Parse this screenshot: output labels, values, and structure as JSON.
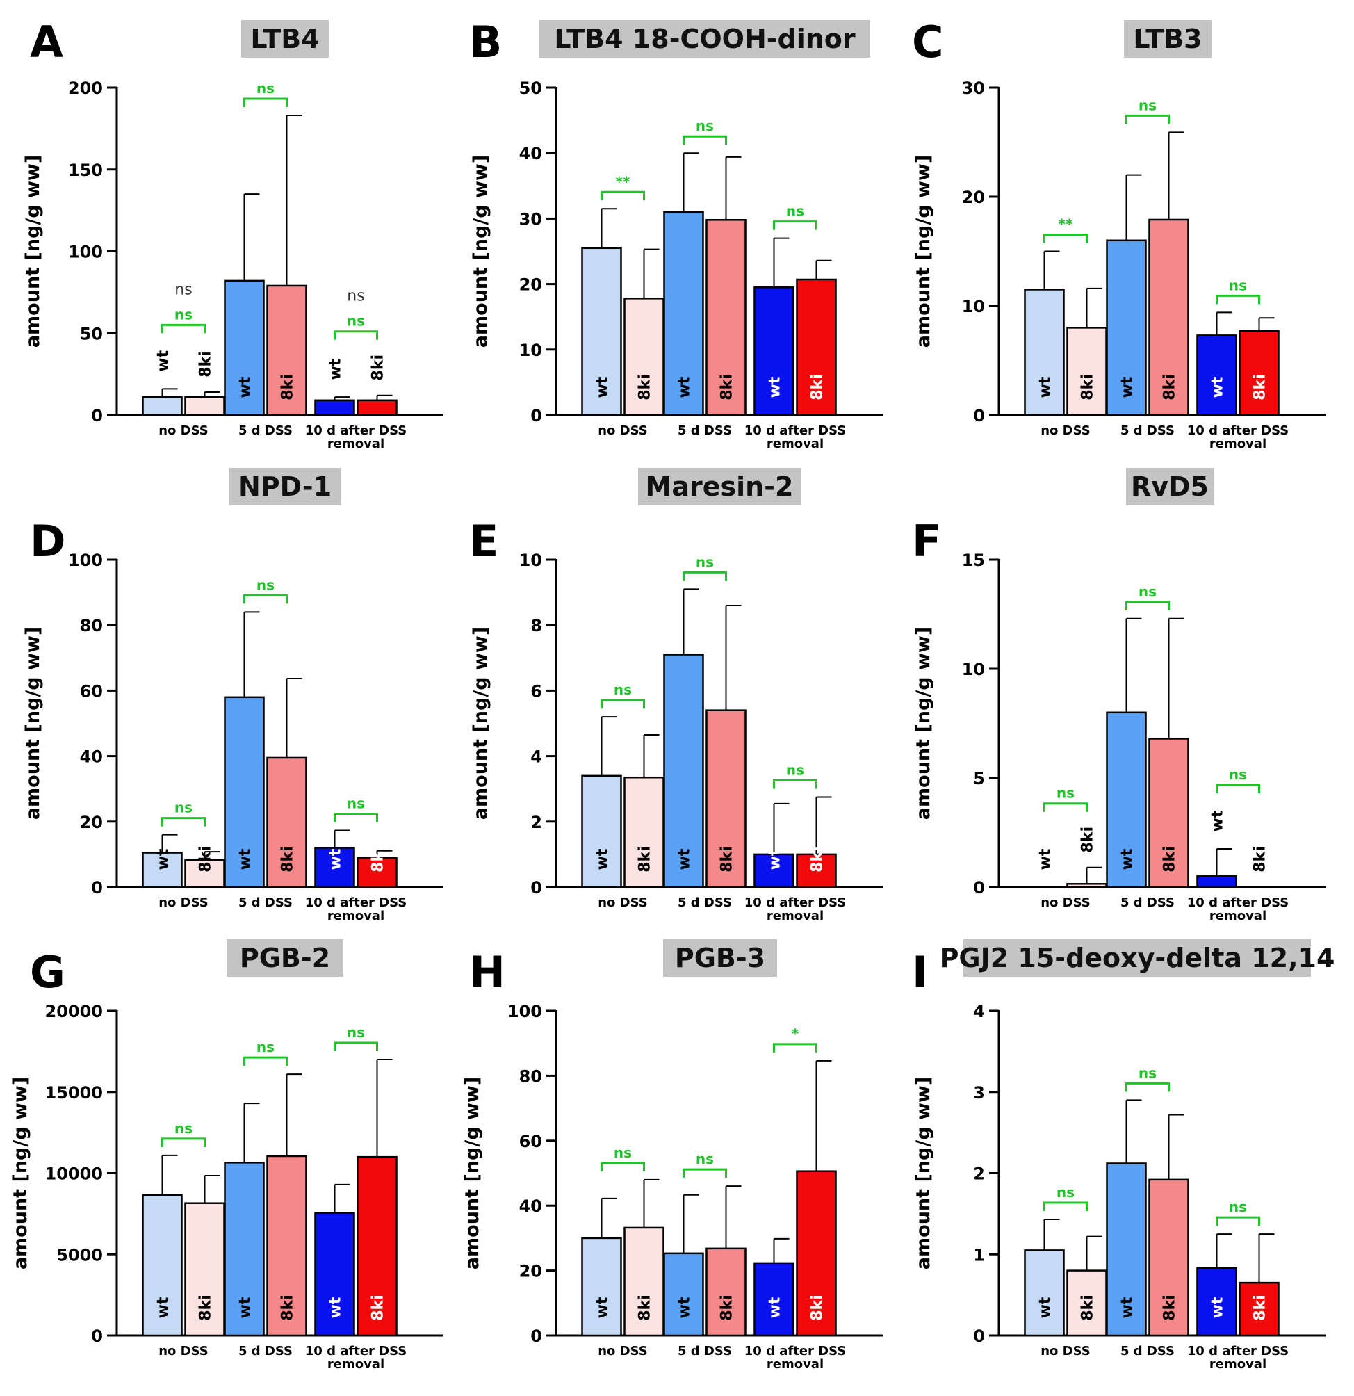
{
  "chart_data": [
    {
      "type": "bar",
      "letter": "A",
      "title": "LTB4",
      "ylabel": "amount [ng/g ww]",
      "ylim": [
        0,
        200
      ],
      "yticks": [
        0,
        50,
        100,
        150,
        200
      ],
      "categories": [
        "no DSS",
        "5 d DSS",
        "10 d after DSS removal"
      ],
      "series": [
        {
          "name": "wt",
          "values": [
            11,
            82,
            9
          ],
          "errors": [
            5,
            53,
            2
          ]
        },
        {
          "name": "8ki",
          "values": [
            11,
            79,
            9
          ],
          "errors": [
            3,
            104,
            3
          ]
        }
      ],
      "significance": [
        "ns",
        "ns",
        "ns"
      ],
      "extra_annotations": [
        {
          "group": 0,
          "text": "ns"
        },
        {
          "group": 2,
          "text": "ns"
        }
      ],
      "bar_labels_above": [
        0,
        2
      ]
    },
    {
      "type": "bar",
      "letter": "B",
      "title": "LTB4 18-COOH-dinor",
      "ylabel": "amount [ng/g ww]",
      "ylim": [
        0,
        50
      ],
      "yticks": [
        0,
        10,
        20,
        30,
        40,
        50
      ],
      "categories": [
        "no DSS",
        "5 d DSS",
        "10 d after DSS removal"
      ],
      "series": [
        {
          "name": "wt",
          "values": [
            25.5,
            31,
            19.5
          ],
          "errors": [
            6,
            9,
            7.5
          ]
        },
        {
          "name": "8ki",
          "values": [
            17.8,
            29.8,
            20.7
          ],
          "errors": [
            7.5,
            9.6,
            2.9
          ]
        }
      ],
      "significance": [
        "**",
        "ns",
        "ns"
      ],
      "extra_annotations": [],
      "bar_labels_above": []
    },
    {
      "type": "bar",
      "letter": "C",
      "title": "LTB3",
      "ylabel": "amount [ng/g ww]",
      "ylim": [
        0,
        30
      ],
      "yticks": [
        0,
        10,
        20,
        30
      ],
      "categories": [
        "no DSS",
        "5 d DSS",
        "10 d after DSS removal"
      ],
      "series": [
        {
          "name": "wt",
          "values": [
            11.5,
            16,
            7.3
          ],
          "errors": [
            3.5,
            6,
            2.1
          ]
        },
        {
          "name": "8ki",
          "values": [
            8,
            17.9,
            7.7
          ],
          "errors": [
            3.6,
            8,
            1.2
          ]
        }
      ],
      "significance": [
        "**",
        "ns",
        "ns"
      ],
      "extra_annotations": [],
      "bar_labels_above": []
    },
    {
      "type": "bar",
      "letter": "D",
      "title": "NPD-1",
      "ylabel": "amount [ng/g ww]",
      "ylim": [
        0,
        100
      ],
      "yticks": [
        0,
        20,
        40,
        60,
        80,
        100
      ],
      "categories": [
        "no DSS",
        "5 d DSS",
        "10 d after DSS removal"
      ],
      "series": [
        {
          "name": "wt",
          "values": [
            10.5,
            58,
            12
          ],
          "errors": [
            5.5,
            26,
            5.3
          ]
        },
        {
          "name": "8ki",
          "values": [
            8.3,
            39.5,
            9
          ],
          "errors": [
            2.5,
            24.2,
            2.1
          ]
        }
      ],
      "significance": [
        "ns",
        "ns",
        "ns"
      ],
      "extra_annotations": [],
      "bar_labels_above": []
    },
    {
      "type": "bar",
      "letter": "E",
      "title": "Maresin-2",
      "ylabel": "amount [ng/g ww]",
      "ylim": [
        0,
        10
      ],
      "yticks": [
        0,
        2,
        4,
        6,
        8,
        10
      ],
      "categories": [
        "no DSS",
        "5 d DSS",
        "10 d after DSS removal"
      ],
      "series": [
        {
          "name": "wt",
          "values": [
            3.4,
            7.1,
            1
          ],
          "errors": [
            1.8,
            2,
            1.55
          ]
        },
        {
          "name": "8ki",
          "values": [
            3.35,
            5.4,
            1
          ],
          "errors": [
            1.3,
            3.2,
            1.75
          ]
        }
      ],
      "significance": [
        "ns",
        "ns",
        "ns"
      ],
      "extra_annotations": [],
      "bar_labels_above": []
    },
    {
      "type": "bar",
      "letter": "F",
      "title": "RvD5",
      "ylabel": "amount [ng/g ww]",
      "ylim": [
        0,
        15
      ],
      "yticks": [
        0,
        5,
        10,
        15
      ],
      "categories": [
        "no DSS",
        "5 d DSS",
        "10 d after DSS removal"
      ],
      "series": [
        {
          "name": "wt",
          "values": [
            0,
            8,
            0.5
          ],
          "errors": [
            0,
            4.3,
            1.25
          ]
        },
        {
          "name": "8ki",
          "values": [
            0.15,
            6.8,
            0
          ],
          "errors": [
            0.75,
            5.5,
            0
          ]
        }
      ],
      "significance": [
        "ns",
        "ns",
        "ns"
      ],
      "extra_annotations": [],
      "bar_labels_above": [
        0,
        2
      ]
    },
    {
      "type": "bar",
      "letter": "G",
      "title": "PGB-2",
      "ylabel": "amount [ng/g ww]",
      "ylim": [
        0,
        20000
      ],
      "yticks": [
        0,
        5000,
        10000,
        15000,
        20000
      ],
      "categories": [
        "no DSS",
        "5 d DSS",
        "10 d after DSS removal"
      ],
      "series": [
        {
          "name": "wt",
          "values": [
            8650,
            10650,
            7550
          ],
          "errors": [
            2450,
            3650,
            1750
          ]
        },
        {
          "name": "8ki",
          "values": [
            8150,
            11050,
            11000
          ],
          "errors": [
            1700,
            5050,
            6000
          ]
        }
      ],
      "significance": [
        "ns",
        "ns",
        "ns"
      ],
      "extra_annotations": [],
      "bar_labels_above": []
    },
    {
      "type": "bar",
      "letter": "H",
      "title": "PGB-3",
      "ylabel": "amount [ng/g ww]",
      "ylim": [
        0,
        100
      ],
      "yticks": [
        0,
        20,
        40,
        60,
        80,
        100
      ],
      "categories": [
        "no DSS",
        "5 d DSS",
        "10 d after DSS removal"
      ],
      "series": [
        {
          "name": "wt",
          "values": [
            30,
            25.3,
            22.3
          ],
          "errors": [
            12.2,
            18,
            7.5
          ]
        },
        {
          "name": "8ki",
          "values": [
            33.2,
            26.8,
            50.6
          ],
          "errors": [
            14.8,
            19.2,
            34
          ]
        }
      ],
      "significance": [
        "ns",
        "ns",
        "*"
      ],
      "extra_annotations": [],
      "bar_labels_above": []
    },
    {
      "type": "bar",
      "letter": "I",
      "title": "PGJ2 15-deoxy-delta 12,14",
      "ylabel": "amount [ng/g ww]",
      "ylim": [
        0,
        4
      ],
      "yticks": [
        0,
        1,
        2,
        3,
        4
      ],
      "categories": [
        "no DSS",
        "5 d DSS",
        "10 d after DSS removal"
      ],
      "series": [
        {
          "name": "wt",
          "values": [
            1.05,
            2.12,
            0.83
          ],
          "errors": [
            0.38,
            0.78,
            0.42
          ]
        },
        {
          "name": "8ki",
          "values": [
            0.8,
            1.92,
            0.65
          ],
          "errors": [
            0.42,
            0.8,
            0.6
          ]
        }
      ],
      "significance": [
        "ns",
        "ns",
        "ns"
      ],
      "extra_annotations": [],
      "bar_labels_above": []
    }
  ],
  "colors": {
    "wt": [
      "#c5dbf5",
      "#5aa0f5",
      "#0b12f0"
    ],
    "ki": [
      "#fde2e2",
      "#f58888",
      "#f20a0a"
    ],
    "sig": "#22c22a",
    "title_bg": "#c4c4c4",
    "bar_label_light": "#000000",
    "bar_label_dark": "#ffffff"
  }
}
